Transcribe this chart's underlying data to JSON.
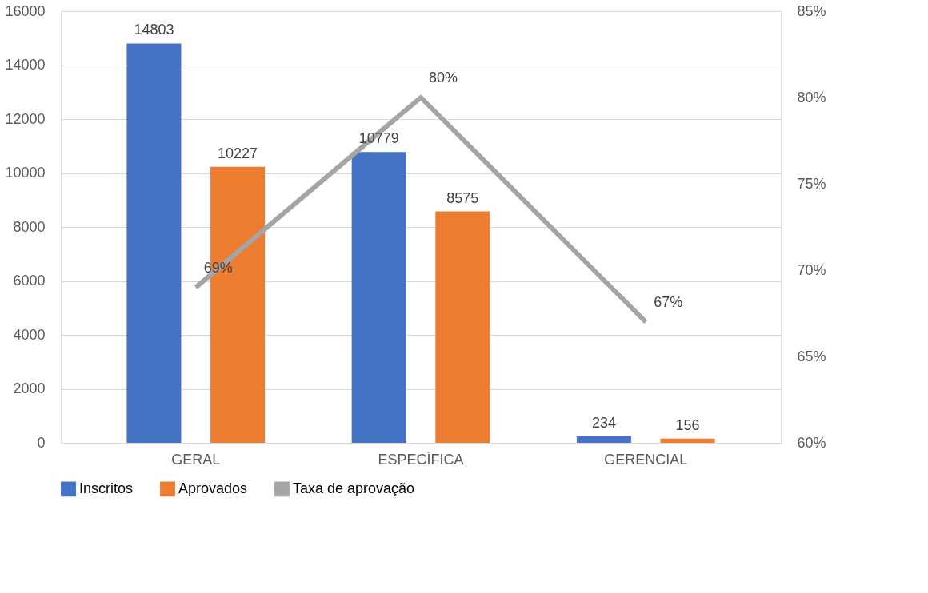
{
  "chart_data": {
    "type": "bar",
    "categories": [
      "GERAL",
      "ESPECÍFICA",
      "GERENCIAL"
    ],
    "series": [
      {
        "name": "Inscritos",
        "color": "#4472c4",
        "values": [
          14803,
          10779,
          234
        ]
      },
      {
        "name": "Aprovados",
        "color": "#ed7d31",
        "values": [
          10227,
          8575,
          156
        ]
      },
      {
        "name": "Taxa de aprovação",
        "color": "#a5a5a5",
        "type": "line",
        "axis": "y2",
        "values": [
          69,
          80,
          67
        ],
        "value_labels": [
          "69%",
          "80%",
          "67%"
        ]
      }
    ],
    "ylim": [
      0,
      16000
    ],
    "yticks": [
      0,
      2000,
      4000,
      6000,
      8000,
      10000,
      12000,
      14000,
      16000
    ],
    "y2lim": [
      60,
      85
    ],
    "y2ticks": [
      {
        "value": 60,
        "label": "60%"
      },
      {
        "value": 65,
        "label": "65%"
      },
      {
        "value": 70,
        "label": "70%"
      },
      {
        "value": 75,
        "label": "75%"
      },
      {
        "value": 80,
        "label": "80%"
      },
      {
        "value": 85,
        "label": "85%"
      }
    ],
    "grid": "y",
    "legend": "bottom",
    "data_labels": true
  }
}
